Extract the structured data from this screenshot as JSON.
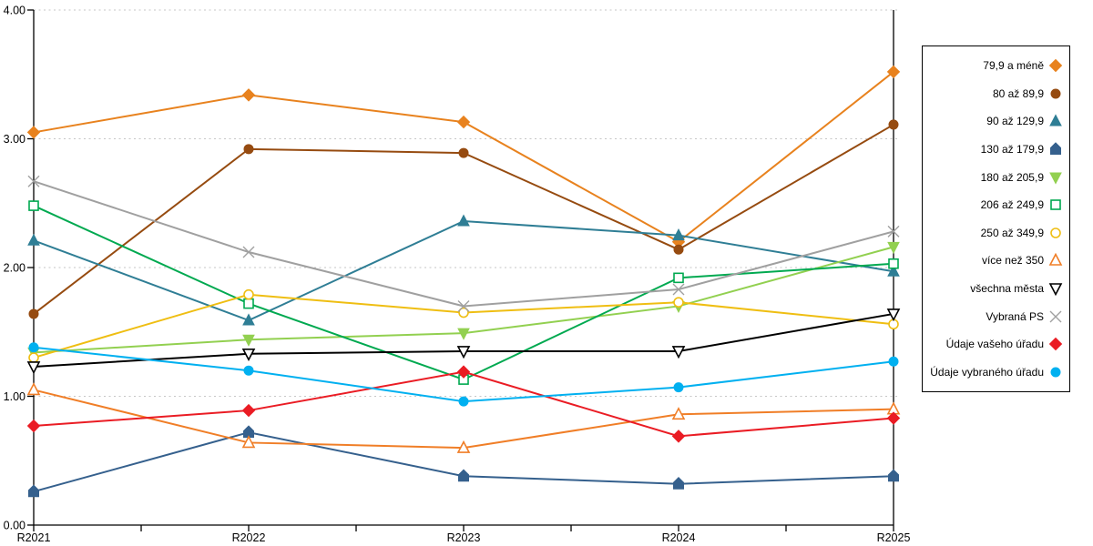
{
  "chart_data": {
    "type": "line",
    "x_labels": [
      "R2021",
      "R2022",
      "R2023",
      "R2024",
      "R2025"
    ],
    "y_ticks": [
      "0.00",
      "1.00",
      "2.00",
      "3.00",
      "4.00"
    ],
    "ylim": [
      0,
      4
    ],
    "grid": "horizontal dotted lines at 1.00 intervals",
    "legend_position": "right",
    "axis_color": "#000000",
    "gridline_color": "#c6c6c6",
    "series": [
      {
        "name": "79,9 a méně",
        "color": "#E8821E",
        "marker": "diamond",
        "filled": true,
        "values": [
          3.05,
          3.34,
          3.13,
          2.2,
          3.52
        ]
      },
      {
        "name": "80 až 89,9",
        "color": "#964B10",
        "marker": "circle",
        "filled": true,
        "values": [
          1.64,
          2.92,
          2.89,
          2.14,
          3.11
        ]
      },
      {
        "name": "90 až 129,9",
        "color": "#2F7E95",
        "marker": "triangle-up",
        "filled": true,
        "values": [
          2.21,
          1.59,
          2.36,
          2.25,
          1.97
        ]
      },
      {
        "name": "130 až 179,9",
        "color": "#35608D",
        "marker": "pentagon",
        "filled": true,
        "values": [
          0.26,
          0.72,
          0.38,
          0.32,
          0.38
        ]
      },
      {
        "name": "180 až 205,9",
        "color": "#92D050",
        "marker": "triangle-down",
        "filled": true,
        "values": [
          1.34,
          1.44,
          1.49,
          1.7,
          2.16
        ]
      },
      {
        "name": "206 až 249,9",
        "color": "#00A950",
        "marker": "square",
        "filled": false,
        "values": [
          2.48,
          1.72,
          1.13,
          1.92,
          2.03
        ]
      },
      {
        "name": "250 až 349,9",
        "color": "#EFBE12",
        "marker": "circle",
        "filled": false,
        "values": [
          1.3,
          1.79,
          1.65,
          1.73,
          1.56
        ]
      },
      {
        "name": "více než 350",
        "color": "#F07E27",
        "marker": "triangle-up",
        "filled": false,
        "values": [
          1.05,
          0.64,
          0.6,
          0.86,
          0.9
        ]
      },
      {
        "name": "všechna města",
        "color": "#000000",
        "marker": "triangle-down",
        "filled": false,
        "values": [
          1.23,
          1.33,
          1.35,
          1.35,
          1.64
        ]
      },
      {
        "name": "Vybraná PS",
        "color": "#A0A0A0",
        "marker": "x",
        "filled": false,
        "values": [
          2.67,
          2.12,
          1.7,
          1.83,
          2.28
        ]
      },
      {
        "name": "Údaje vašeho úřadu",
        "color": "#EA1C24",
        "marker": "diamond",
        "filled": true,
        "values": [
          0.77,
          0.89,
          1.19,
          0.69,
          0.83
        ]
      },
      {
        "name": "Údaje vybraného úřadu",
        "color": "#00B0F0",
        "marker": "circle",
        "filled": true,
        "values": [
          1.38,
          1.2,
          0.96,
          1.07,
          1.27
        ]
      }
    ]
  }
}
